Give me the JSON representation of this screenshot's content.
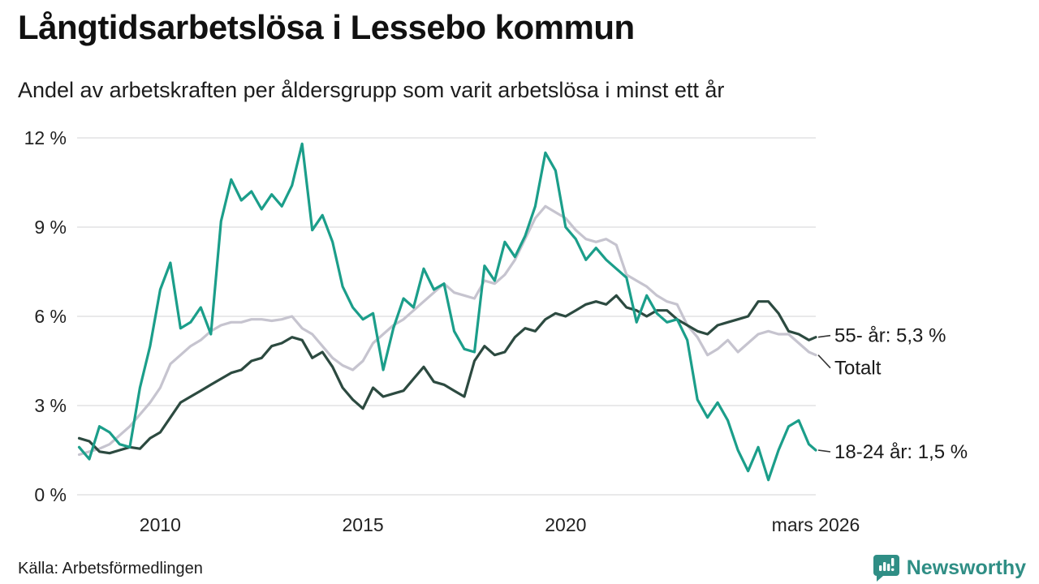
{
  "header": {
    "title": "Långtidsarbetslösa i Lessebo kommun",
    "subtitle": "Andel av arbetskraften per åldersgrupp som varit arbetslösa i minst ett år"
  },
  "footer": {
    "source": "Källa: Arbetsförmedlingen",
    "brand": "Newsworthy"
  },
  "colors": {
    "teal": "#1b9e8a",
    "dark_green": "#2c4a40",
    "gray": "#c6c4cf",
    "grid": "#e2e2e4",
    "brand_teal": "#2f8e85"
  },
  "chart_data": {
    "type": "line",
    "title": "Långtidsarbetslösa i Lessebo kommun",
    "subtitle": "Andel av arbetskraften per åldersgrupp som varit arbetslösa i minst ett år",
    "unit": "%",
    "grid": true,
    "x_axis": {
      "min": 2007.95,
      "max": 2026.17,
      "ticks": [
        {
          "x": 2010,
          "label": "2010"
        },
        {
          "x": 2015,
          "label": "2015"
        },
        {
          "x": 2020,
          "label": "2020"
        },
        {
          "x": 2026.17,
          "label": "mars 2026"
        }
      ]
    },
    "y_axis": {
      "min": 0,
      "max": 12,
      "ticks": [
        {
          "y": 0,
          "label": "0 %"
        },
        {
          "y": 3,
          "label": "3 %"
        },
        {
          "y": 6,
          "label": "6 %"
        },
        {
          "y": 9,
          "label": "9 %"
        },
        {
          "y": 12,
          "label": "12 %"
        }
      ]
    },
    "x": [
      2008.0,
      2008.25,
      2008.5,
      2008.75,
      2009.0,
      2009.25,
      2009.5,
      2009.75,
      2010.0,
      2010.25,
      2010.5,
      2010.75,
      2011.0,
      2011.25,
      2011.5,
      2011.75,
      2012.0,
      2012.25,
      2012.5,
      2012.75,
      2013.0,
      2013.25,
      2013.5,
      2013.75,
      2014.0,
      2014.25,
      2014.5,
      2014.75,
      2015.0,
      2015.25,
      2015.5,
      2015.75,
      2016.0,
      2016.25,
      2016.5,
      2016.75,
      2017.0,
      2017.25,
      2017.5,
      2017.75,
      2018.0,
      2018.25,
      2018.5,
      2018.75,
      2019.0,
      2019.25,
      2019.5,
      2019.75,
      2020.0,
      2020.25,
      2020.5,
      2020.75,
      2021.0,
      2021.25,
      2021.5,
      2021.75,
      2022.0,
      2022.25,
      2022.5,
      2022.75,
      2023.0,
      2023.25,
      2023.5,
      2023.75,
      2024.0,
      2024.25,
      2024.5,
      2024.75,
      2025.0,
      2025.25,
      2025.5,
      2025.75,
      2026.0,
      2026.17
    ],
    "series": [
      {
        "name": "Totalt",
        "annotation": "Totalt",
        "color": "#c6c4cf",
        "end_value": 4.7,
        "values": [
          1.35,
          1.45,
          1.55,
          1.7,
          2.0,
          2.3,
          2.7,
          3.1,
          3.6,
          4.4,
          4.7,
          5.0,
          5.2,
          5.5,
          5.7,
          5.8,
          5.8,
          5.9,
          5.9,
          5.85,
          5.9,
          6.0,
          5.6,
          5.4,
          5.0,
          4.6,
          4.35,
          4.2,
          4.5,
          5.1,
          5.4,
          5.7,
          5.9,
          6.2,
          6.5,
          6.8,
          7.1,
          6.8,
          6.7,
          6.6,
          7.2,
          7.1,
          7.4,
          7.9,
          8.6,
          9.3,
          9.7,
          9.5,
          9.3,
          8.9,
          8.6,
          8.5,
          8.6,
          8.4,
          7.4,
          7.2,
          7.0,
          6.7,
          6.5,
          6.4,
          5.7,
          5.3,
          4.7,
          4.9,
          5.2,
          4.8,
          5.1,
          5.4,
          5.5,
          5.4,
          5.4,
          5.1,
          4.8,
          4.7
        ]
      },
      {
        "name": "55- år",
        "annotation": "55- år: 5,3 %",
        "color": "#2c4a40",
        "end_value": 5.3,
        "values": [
          1.9,
          1.8,
          1.45,
          1.4,
          1.5,
          1.6,
          1.55,
          1.9,
          2.1,
          2.6,
          3.1,
          3.3,
          3.5,
          3.7,
          3.9,
          4.1,
          4.2,
          4.5,
          4.6,
          5.0,
          5.1,
          5.3,
          5.2,
          4.6,
          4.8,
          4.3,
          3.6,
          3.2,
          2.9,
          3.6,
          3.3,
          3.4,
          3.5,
          3.9,
          4.3,
          3.8,
          3.7,
          3.5,
          3.3,
          4.5,
          5.0,
          4.7,
          4.8,
          5.3,
          5.6,
          5.5,
          5.9,
          6.1,
          6.0,
          6.2,
          6.4,
          6.5,
          6.4,
          6.7,
          6.3,
          6.2,
          6.0,
          6.2,
          6.2,
          5.9,
          5.7,
          5.5,
          5.4,
          5.7,
          5.8,
          5.9,
          6.0,
          6.5,
          6.5,
          6.1,
          5.5,
          5.4,
          5.2,
          5.3
        ]
      },
      {
        "name": "18-24 år",
        "annotation": "18-24 år: 1,5 %",
        "color": "#1b9e8a",
        "end_value": 1.5,
        "values": [
          1.6,
          1.2,
          2.3,
          2.1,
          1.7,
          1.6,
          3.6,
          5.0,
          6.9,
          7.8,
          5.6,
          5.8,
          6.3,
          5.4,
          9.2,
          10.6,
          9.9,
          10.2,
          9.6,
          10.1,
          9.7,
          10.4,
          11.8,
          8.9,
          9.4,
          8.5,
          7.0,
          6.3,
          5.9,
          6.1,
          4.2,
          5.6,
          6.6,
          6.3,
          7.6,
          6.9,
          7.1,
          5.5,
          4.9,
          4.8,
          7.7,
          7.2,
          8.5,
          8.0,
          8.7,
          9.7,
          11.5,
          10.9,
          9.0,
          8.6,
          7.9,
          8.3,
          7.9,
          7.6,
          7.3,
          5.8,
          6.7,
          6.1,
          5.8,
          5.9,
          5.2,
          3.2,
          2.6,
          3.1,
          2.5,
          1.5,
          0.8,
          1.6,
          0.5,
          1.5,
          2.3,
          2.5,
          1.7,
          1.5
        ]
      }
    ]
  }
}
